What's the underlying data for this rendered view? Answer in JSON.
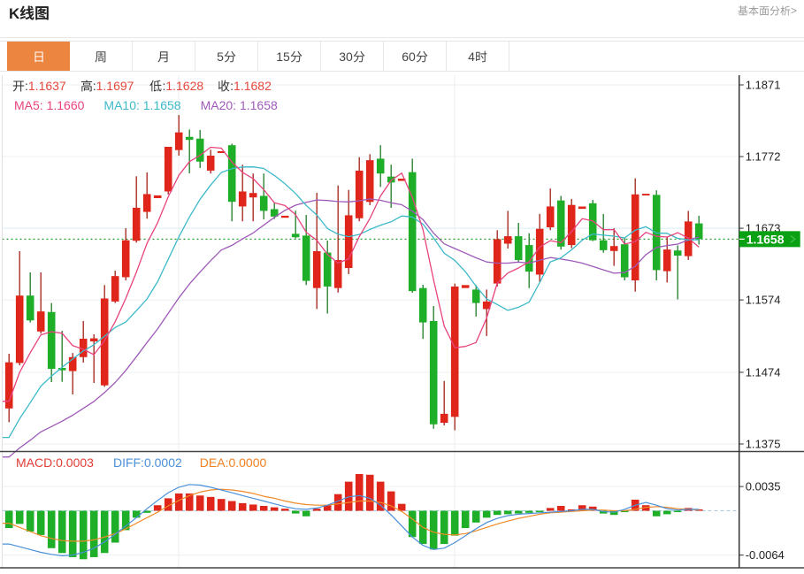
{
  "header": {
    "title": "K线图",
    "link_label": "基本面分析>"
  },
  "tabs": {
    "items": [
      "日",
      "周",
      "月",
      "5分",
      "15分",
      "30分",
      "60分",
      "4时"
    ],
    "selected_index": 0
  },
  "legend": {
    "ohlc": [
      {
        "label": "开:",
        "value": "1.1637"
      },
      {
        "label": "高:",
        "value": "1.1697"
      },
      {
        "label": "低:",
        "value": "1.1628"
      },
      {
        "label": "收:",
        "value": "1.1682"
      }
    ],
    "ma": [
      {
        "label": "MA5: ",
        "value": "1.1660"
      },
      {
        "label": "MA10: ",
        "value": "1.1658"
      },
      {
        "label": "MA20: ",
        "value": "1.1658"
      }
    ],
    "macd": [
      {
        "label": "MACD:",
        "value": "0.0003"
      },
      {
        "label": "DIFF:",
        "value": "0.0002"
      },
      {
        "label": "DEA:",
        "value": "0.0000"
      }
    ]
  },
  "price_badge": {
    "value": "1.1658"
  },
  "colors": {
    "up": "#e0251a",
    "down": "#1fae28",
    "up_wick": "#a02018",
    "down_wick": "#1d7d26",
    "ma5": "#e8437f",
    "ma10": "#3cb9c8",
    "ma20": "#9e5ab8",
    "diff_line": "#4a90d9",
    "dea_line": "#f08a28",
    "badge_bg": "#0aa013",
    "tab_selected_bg": "#ec8540",
    "current_price_line": "#2aa12e",
    "zero_dash": "#a9cbe9",
    "ohlc_value": "#e4483c",
    "macd_label": "#e03c35",
    "diff_label": "#4a90d9",
    "dea_label": "#f08020"
  },
  "chart_data": {
    "type": "candlestick",
    "price_axis": {
      "labels": [
        "1.1871",
        "1.1772",
        "1.1673",
        "1.1574",
        "1.1474",
        "1.1375"
      ],
      "values": [
        1.1871,
        1.1772,
        1.1673,
        1.1574,
        1.1474,
        1.1375
      ],
      "current_price": 1.1658
    },
    "candles": [
      {
        "o": 1.14241,
        "h": 1.14996,
        "l": 1.14051,
        "c": 1.14878
      },
      {
        "o": 1.14869,
        "h": 1.16413,
        "l": 1.14837,
        "c": 1.158
      },
      {
        "o": 1.158,
        "h": 1.1612,
        "l": 1.15429,
        "c": 1.15457
      },
      {
        "o": 1.15304,
        "h": 1.1612,
        "l": 1.15275,
        "c": 1.15581
      },
      {
        "o": 1.15573,
        "h": 1.15697,
        "l": 1.14605,
        "c": 1.14788
      },
      {
        "o": 1.14801,
        "h": 1.15314,
        "l": 1.14609,
        "c": 1.14768
      },
      {
        "o": 1.14757,
        "h": 1.15007,
        "l": 1.14434,
        "c": 1.1495
      },
      {
        "o": 1.1495,
        "h": 1.15448,
        "l": 1.14874,
        "c": 1.15204
      },
      {
        "o": 1.15167,
        "h": 1.15265,
        "l": 1.14593,
        "c": 1.15209
      },
      {
        "o": 1.1456,
        "h": 1.15945,
        "l": 1.14539,
        "c": 1.1576
      },
      {
        "o": 1.15718,
        "h": 1.16144,
        "l": 1.15697,
        "c": 1.16069
      },
      {
        "o": 1.16054,
        "h": 1.16731,
        "l": 1.1601,
        "c": 1.16564
      },
      {
        "o": 1.16557,
        "h": 1.17448,
        "l": 1.16532,
        "c": 1.17013
      },
      {
        "o": 1.16956,
        "h": 1.17501,
        "l": 1.16863,
        "c": 1.17202
      },
      {
        "o": 1.17146,
        "h": 1.17184,
        "l": 1.17146,
        "c": 1.17184
      },
      {
        "o": 1.17238,
        "h": 1.17855,
        "l": 1.17198,
        "c": 1.17855
      },
      {
        "o": 1.1781,
        "h": 1.18293,
        "l": 1.17733,
        "c": 1.18054
      },
      {
        "o": 1.17992,
        "h": 1.18094,
        "l": 1.17488,
        "c": 1.17951
      },
      {
        "o": 1.17968,
        "h": 1.18088,
        "l": 1.17562,
        "c": 1.1765
      },
      {
        "o": 1.17526,
        "h": 1.17815,
        "l": 1.17486,
        "c": 1.17733
      },
      {
        "o": 1.17769,
        "h": 1.17794,
        "l": 1.17769,
        "c": 1.17794
      },
      {
        "o": 1.17877,
        "h": 1.17898,
        "l": 1.16826,
        "c": 1.17095
      },
      {
        "o": 1.17031,
        "h": 1.17608,
        "l": 1.16826,
        "c": 1.17238
      },
      {
        "o": 1.17156,
        "h": 1.17486,
        "l": 1.16826,
        "c": 1.17217
      },
      {
        "o": 1.17177,
        "h": 1.17486,
        "l": 1.16853,
        "c": 1.1697
      },
      {
        "o": 1.16994,
        "h": 1.17085,
        "l": 1.16858,
        "c": 1.16891
      },
      {
        "o": 1.16875,
        "h": 1.16903,
        "l": 1.16875,
        "c": 1.16903
      },
      {
        "o": 1.16653,
        "h": 1.16972,
        "l": 1.1659,
        "c": 1.16606
      },
      {
        "o": 1.16629,
        "h": 1.16914,
        "l": 1.15945,
        "c": 1.16003
      },
      {
        "o": 1.15904,
        "h": 1.1722,
        "l": 1.15614,
        "c": 1.16413
      },
      {
        "o": 1.16394,
        "h": 1.16559,
        "l": 1.15552,
        "c": 1.15925
      },
      {
        "o": 1.15904,
        "h": 1.17321,
        "l": 1.15842,
        "c": 1.16291
      },
      {
        "o": 1.16181,
        "h": 1.17259,
        "l": 1.16096,
        "c": 1.16909
      },
      {
        "o": 1.16868,
        "h": 1.17712,
        "l": 1.16826,
        "c": 1.17526
      },
      {
        "o": 1.17094,
        "h": 1.17753,
        "l": 1.17049,
        "c": 1.1767
      },
      {
        "o": 1.17691,
        "h": 1.17877,
        "l": 1.173,
        "c": 1.17486
      },
      {
        "o": 1.17444,
        "h": 1.17608,
        "l": 1.17012,
        "c": 1.17362
      },
      {
        "o": 1.17384,
        "h": 1.17415,
        "l": 1.17384,
        "c": 1.17415
      },
      {
        "o": 1.17505,
        "h": 1.17691,
        "l": 1.15839,
        "c": 1.15862
      },
      {
        "o": 1.15904,
        "h": 1.15949,
        "l": 1.15201,
        "c": 1.15429
      },
      {
        "o": 1.15449,
        "h": 1.15656,
        "l": 1.1396,
        "c": 1.14022
      },
      {
        "o": 1.14043,
        "h": 1.14621,
        "l": 1.14007,
        "c": 1.14167
      },
      {
        "o": 1.14125,
        "h": 1.15966,
        "l": 1.13939,
        "c": 1.15925
      },
      {
        "o": 1.15904,
        "h": 1.15945,
        "l": 1.15904,
        "c": 1.15945
      },
      {
        "o": 1.15883,
        "h": 1.15945,
        "l": 1.1551,
        "c": 1.15697
      },
      {
        "o": 1.15614,
        "h": 1.15883,
        "l": 1.15242,
        "c": 1.15718
      },
      {
        "o": 1.15966,
        "h": 1.16703,
        "l": 1.15925,
        "c": 1.16579
      },
      {
        "o": 1.16517,
        "h": 1.1697,
        "l": 1.1645,
        "c": 1.1662
      },
      {
        "o": 1.1662,
        "h": 1.16805,
        "l": 1.16254,
        "c": 1.16291
      },
      {
        "o": 1.16498,
        "h": 1.16662,
        "l": 1.15904,
        "c": 1.16131
      },
      {
        "o": 1.1609,
        "h": 1.16929,
        "l": 1.15987,
        "c": 1.16722
      },
      {
        "o": 1.16743,
        "h": 1.17279,
        "l": 1.16703,
        "c": 1.17031
      },
      {
        "o": 1.17114,
        "h": 1.17177,
        "l": 1.16435,
        "c": 1.16477
      },
      {
        "o": 1.16498,
        "h": 1.17135,
        "l": 1.16456,
        "c": 1.17052
      },
      {
        "o": 1.16998,
        "h": 1.1703,
        "l": 1.16998,
        "c": 1.1703
      },
      {
        "o": 1.17075,
        "h": 1.17122,
        "l": 1.16553,
        "c": 1.16564
      },
      {
        "o": 1.16564,
        "h": 1.16928,
        "l": 1.16392,
        "c": 1.16427
      },
      {
        "o": 1.16416,
        "h": 1.16731,
        "l": 1.1621,
        "c": 1.16484
      },
      {
        "o": 1.16509,
        "h": 1.16598,
        "l": 1.1601,
        "c": 1.16053
      },
      {
        "o": 1.1601,
        "h": 1.17419,
        "l": 1.15854,
        "c": 1.17198
      },
      {
        "o": 1.17183,
        "h": 1.17206,
        "l": 1.17183,
        "c": 1.17206
      },
      {
        "o": 1.17191,
        "h": 1.17254,
        "l": 1.1601,
        "c": 1.16152
      },
      {
        "o": 1.16137,
        "h": 1.16609,
        "l": 1.15981,
        "c": 1.16436
      },
      {
        "o": 1.16423,
        "h": 1.16494,
        "l": 1.15747,
        "c": 1.16352
      },
      {
        "o": 1.16345,
        "h": 1.16969,
        "l": 1.16292,
        "c": 1.16824
      },
      {
        "o": 1.16797,
        "h": 1.16903,
        "l": 1.16505,
        "c": 1.1658
      }
    ],
    "ma5": [
      1.1434,
      1.1474,
      1.15011,
      1.15257,
      1.15301,
      1.15279,
      1.15109,
      1.15058,
      1.14984,
      1.15178,
      1.15438,
      1.15761,
      1.16123,
      1.16522,
      1.16806,
      1.17164,
      1.17462,
      1.17649,
      1.17739,
      1.17849,
      1.17836,
      1.17645,
      1.17502,
      1.17415,
      1.17263,
      1.17082,
      1.17044,
      1.16917,
      1.16675,
      1.16563,
      1.1637,
      1.16248,
      1.16308,
      1.16613,
      1.16864,
      1.17176,
      1.17391,
      1.17492,
      1.17159,
      1.16711,
      1.16018,
      1.15379,
      1.15081,
      1.15098,
      1.15151,
      1.1549,
      1.15973,
      1.16112,
      1.16181,
      1.16268,
      1.16469,
      1.16559,
      1.1653,
      1.16683,
      1.16862,
      1.16831,
      1.1671,
      1.16711,
      1.16512,
      1.16545,
      1.16674,
      1.16619,
      1.16609,
      1.16669,
      1.16594,
      1.16469
    ],
    "ma10": [
      1.1384,
      1.141,
      1.14321,
      1.14549,
      1.14687,
      1.14809,
      1.14924,
      1.15035,
      1.15121,
      1.15239,
      1.15359,
      1.15435,
      1.15591,
      1.15753,
      1.15992,
      1.16301,
      1.16611,
      1.16886,
      1.1713,
      1.17327,
      1.175,
      1.17553,
      1.17576,
      1.17577,
      1.17556,
      1.17459,
      1.17344,
      1.1721,
      1.17045,
      1.16913,
      1.16726,
      1.16646,
      1.16613,
      1.16644,
      1.16714,
      1.16773,
      1.16819,
      1.169,
      1.16886,
      1.16787,
      1.16597,
      1.16385,
      1.16286,
      1.16128,
      1.15931,
      1.15754,
      1.15676,
      1.15596,
      1.15639,
      1.15709,
      1.1598,
      1.16266,
      1.16321,
      1.16432,
      1.16565,
      1.1665,
      1.16634,
      1.16621,
      1.16597,
      1.16704,
      1.16752,
      1.16664,
      1.1666,
      1.1659,
      1.1657,
      1.16571
    ],
    "ma20": [
      1.1357,
      1.13695,
      1.13803,
      1.13917,
      1.13991,
      1.14065,
      1.14147,
      1.14242,
      1.14338,
      1.14461,
      1.14599,
      1.14767,
      1.14956,
      1.15151,
      1.1534,
      1.15555,
      1.15768,
      1.1596,
      1.16125,
      1.16283,
      1.16429,
      1.16494,
      1.16583,
      1.16665,
      1.16774,
      1.1688,
      1.16978,
      1.17048,
      1.17088,
      1.1712,
      1.17113,
      1.17099,
      1.17094,
      1.1711,
      1.17135,
      1.17116,
      1.17082,
      1.17055,
      1.16965,
      1.1685,
      1.16662,
      1.16515,
      1.1645,
      1.16386,
      1.16322,
      1.16264,
      1.16248,
      1.16248,
      1.16263,
      1.16248,
      1.16288,
      1.16325,
      1.16304,
      1.1628,
      1.16248,
      1.16202,
      1.16155,
      1.16109,
      1.16118,
      1.16207,
      1.16366,
      1.16465,
      1.16491,
      1.16511,
      1.16567,
      1.1661
    ],
    "macd": {
      "axis_labels": [
        "0.0035",
        "-0.0064"
      ],
      "axis_values": [
        0.0035,
        -0.0064
      ],
      "bars": [
        -0.0025,
        -0.0019,
        -0.003,
        -0.0035,
        -0.0054,
        -0.0061,
        -0.0067,
        -0.007,
        -0.0067,
        -0.0061,
        -0.0046,
        -0.0028,
        -0.001,
        -0.0003,
        0.0008,
        0.0018,
        0.0025,
        0.0025,
        0.0022,
        0.002,
        0.0017,
        0.0014,
        0.0011,
        0.0009,
        0.0007,
        0.0005,
        0.0003,
        -0.0004,
        -0.0008,
        0.0003,
        0.0008,
        0.0024,
        0.0042,
        0.0053,
        0.0052,
        0.0042,
        0.0028,
        0.001,
        -0.0038,
        -0.0048,
        -0.0056,
        -0.0048,
        -0.0036,
        -0.0025,
        -0.0017,
        -0.001,
        -0.0006,
        -0.0005,
        -0.0004,
        -0.0003,
        -0.0002,
        0.0004,
        0.0007,
        0.0002,
        0.0008,
        0.0006,
        -0.0004,
        -0.0006,
        -0.0002,
        0.0016,
        0.0008,
        -0.0008,
        -0.0005,
        -0.0002,
        0.0004,
        0.0002
      ],
      "diff": [
        -0.0048,
        -0.0052,
        -0.0056,
        -0.006,
        -0.0063,
        -0.0065,
        -0.0064,
        -0.006,
        -0.0054,
        -0.0045,
        -0.0034,
        -0.0022,
        -0.001,
        0.0003,
        0.0015,
        0.0026,
        0.0034,
        0.0038,
        0.0037,
        0.0034,
        0.003,
        0.0026,
        0.0022,
        0.0018,
        0.0014,
        0.001,
        0.0006,
        0.0003,
        0.0002,
        0.0004,
        0.0008,
        0.0014,
        0.002,
        0.0022,
        0.0018,
        0.0008,
        -0.0006,
        -0.0022,
        -0.0038,
        -0.005,
        -0.0056,
        -0.0054,
        -0.0046,
        -0.0036,
        -0.0026,
        -0.0017,
        -0.0011,
        -0.0007,
        -0.0005,
        -0.0004,
        -0.0003,
        -0.0002,
        -0.0001,
        0.0,
        0.0002,
        0.0002,
        -0.0001,
        -0.0002,
        0.0002,
        0.0008,
        0.0012,
        0.0008,
        0.0003,
        0.0001,
        0.0002,
        0.0002
      ],
      "dea": [
        -0.0018,
        -0.0024,
        -0.003,
        -0.0036,
        -0.004,
        -0.0043,
        -0.0044,
        -0.0044,
        -0.0042,
        -0.0038,
        -0.0033,
        -0.0026,
        -0.0018,
        -0.001,
        -0.0002,
        0.0007,
        0.0015,
        0.0022,
        0.0027,
        0.003,
        0.0031,
        0.003,
        0.0028,
        0.0025,
        0.0021,
        0.0018,
        0.0014,
        0.0011,
        0.0009,
        0.0008,
        0.0008,
        0.001,
        0.0012,
        0.0014,
        0.0014,
        0.0012,
        0.0007,
        -0.0001,
        -0.0012,
        -0.0024,
        -0.0031,
        -0.0034,
        -0.0035,
        -0.0033,
        -0.0029,
        -0.0024,
        -0.0019,
        -0.0015,
        -0.0011,
        -0.0008,
        -0.0005,
        -0.0003,
        -0.0002,
        -0.0001,
        0.0,
        0.0001,
        0.0001,
        0.0,
        0.0,
        0.0002,
        0.0005,
        0.0006,
        0.0005,
        0.0003,
        0.0002,
        0.0001
      ]
    }
  }
}
